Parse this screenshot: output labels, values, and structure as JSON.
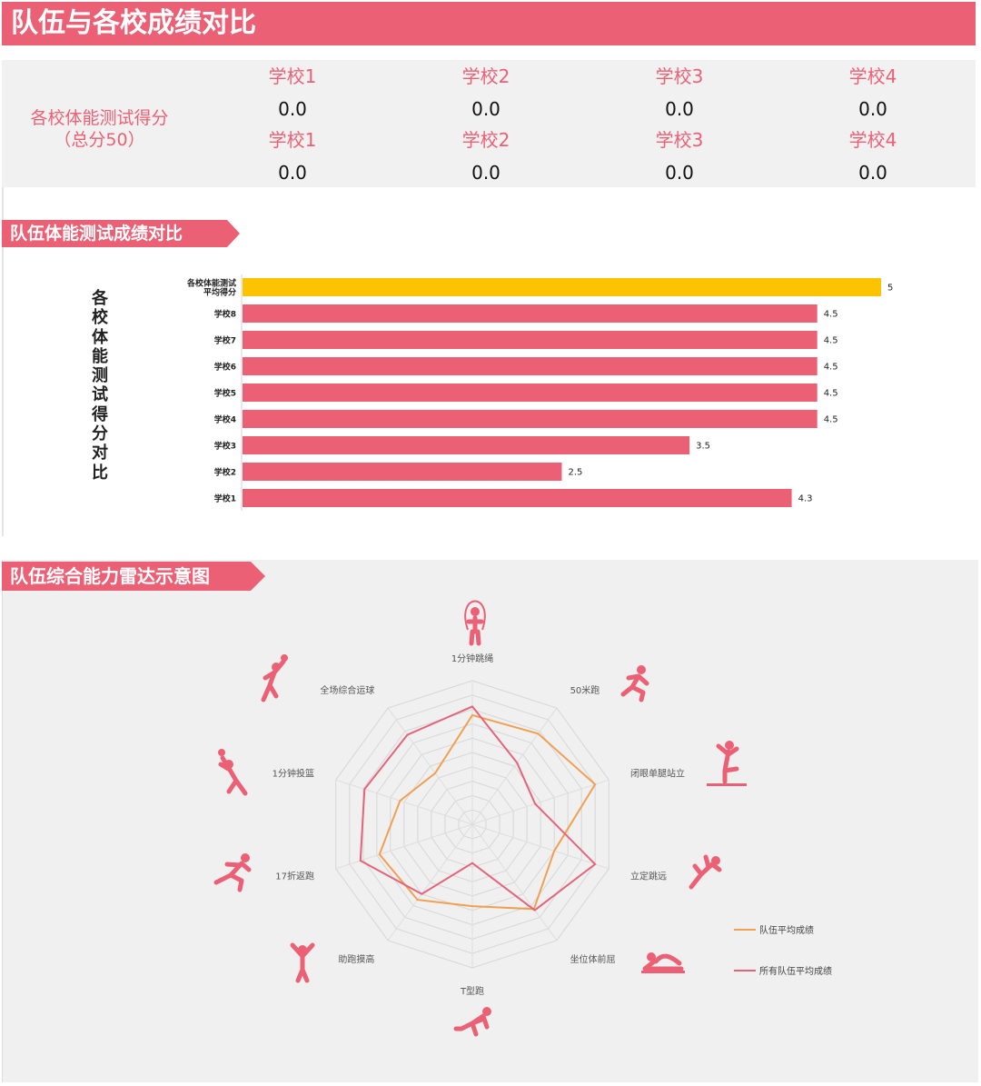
{
  "header": {
    "title": "队伍与各校成绩对比"
  },
  "scores": {
    "label_line1": "各校体能测试得分",
    "label_line2": "（总分50）",
    "row1": [
      {
        "name": "学校1",
        "value": "0.0"
      },
      {
        "name": "学校2",
        "value": "0.0"
      },
      {
        "name": "学校3",
        "value": "0.0"
      },
      {
        "name": "学校4",
        "value": "0.0"
      }
    ],
    "row2": [
      {
        "name": "学校1",
        "value": "0.0"
      },
      {
        "name": "学校2",
        "value": "0.0"
      },
      {
        "name": "学校3",
        "value": "0.0"
      },
      {
        "name": "学校4",
        "value": "0.0"
      }
    ]
  },
  "section1": {
    "title": "队伍体能测试成绩对比"
  },
  "section2": {
    "title": "队伍综合能力雷达示意图"
  },
  "colors": {
    "accent": "#ec6075",
    "highlight": "#fbc300",
    "team_line": "#f0a050",
    "all_line": "#e5647a"
  },
  "chart_data": [
    {
      "type": "bar",
      "orientation": "horizontal",
      "ylabel": "各校体能测试得分对比",
      "categories": [
        "各校体能测试平均得分",
        "学校8",
        "学校7",
        "学校6",
        "学校5",
        "学校4",
        "学校3",
        "学校2",
        "学校1"
      ],
      "category_lines": [
        [
          "各校体能测试",
          "平均得分"
        ],
        [
          "学校8"
        ],
        [
          "学校7"
        ],
        [
          "学校6"
        ],
        [
          "学校5"
        ],
        [
          "学校4"
        ],
        [
          "学校3"
        ],
        [
          "学校2"
        ],
        [
          "学校1"
        ]
      ],
      "values": [
        5,
        4.5,
        4.5,
        4.5,
        4.5,
        4.5,
        3.5,
        2.5,
        4.3
      ],
      "value_labels": [
        "5",
        "4.5",
        "4.5",
        "4.5",
        "4.5",
        "4.5",
        "3.5",
        "2.5",
        "4.3"
      ],
      "highlight_index": 0,
      "xlim": [
        0,
        5
      ]
    },
    {
      "type": "radar",
      "axes": [
        "1分钟跳绳",
        "50米跑",
        "闭眼单腿站立",
        "立定跳远",
        "坐位体前屈",
        "T型跑",
        "助跑摸高",
        "17折返跑",
        "1分钟投篮",
        "全场综合运球"
      ],
      "icons": [
        "rope-skipping-icon",
        "sprint-icon",
        "one-leg-stand-icon",
        "long-jump-icon",
        "sit-reach-icon",
        "t-run-icon",
        "jump-reach-icon",
        "shuttle-run-icon",
        "shooting-icon",
        "dribbling-icon"
      ],
      "range": [
        0,
        10
      ],
      "rings": 10,
      "series": [
        {
          "name": "队伍平均成绩",
          "color": "#f0a050",
          "values": [
            7.6,
            7.8,
            9.0,
            6.0,
            7.3,
            5.7,
            6.5,
            6.8,
            5.3,
            4.4
          ]
        },
        {
          "name": "所有队伍平均成绩",
          "color": "#e5647a",
          "values": [
            8.2,
            5.3,
            4.6,
            9.0,
            7.4,
            2.7,
            6.0,
            8.2,
            7.9,
            7.7
          ]
        }
      ]
    }
  ]
}
